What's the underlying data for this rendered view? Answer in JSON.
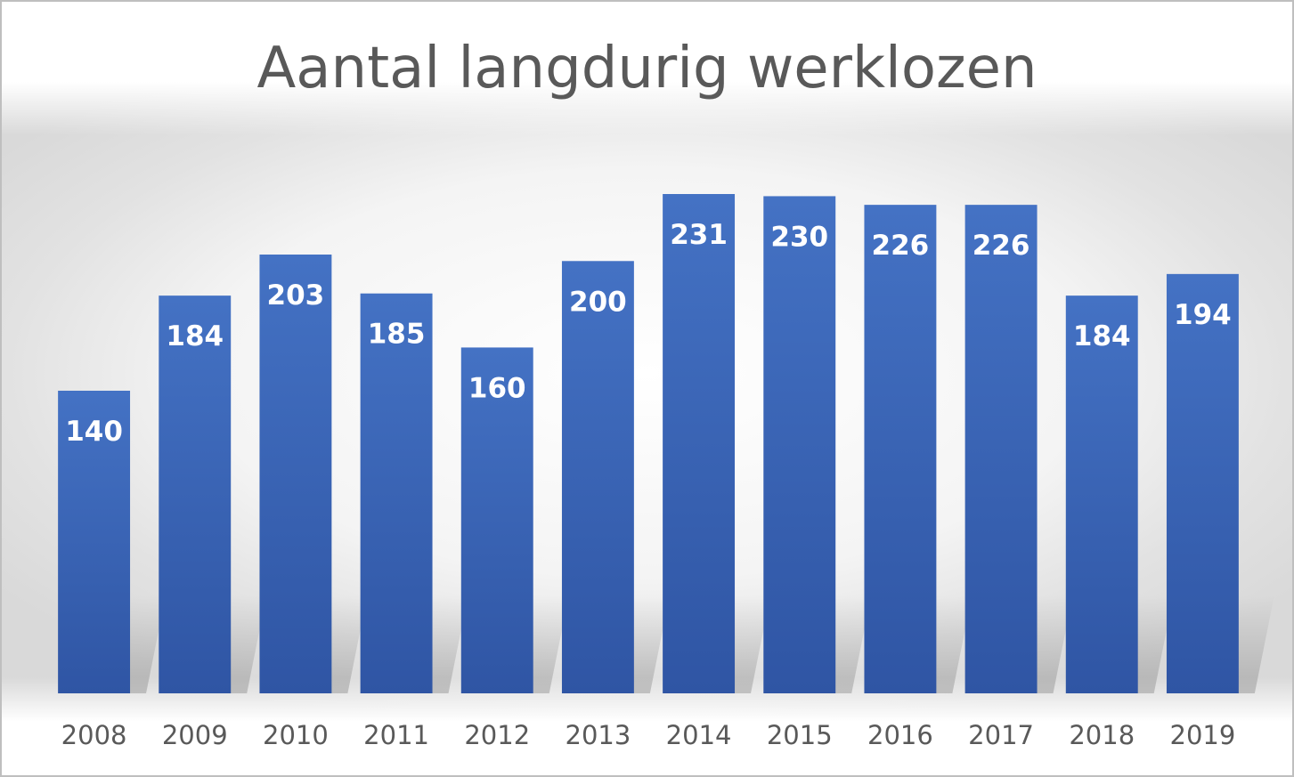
{
  "chart_data": {
    "type": "bar",
    "title": "Aantal langdurig werklozen",
    "categories": [
      "2008",
      "2009",
      "2010",
      "2011",
      "2012",
      "2013",
      "2014",
      "2015",
      "2016",
      "2017",
      "2018",
      "2019"
    ],
    "values": [
      140,
      184,
      203,
      185,
      160,
      200,
      231,
      230,
      226,
      226,
      184,
      194
    ],
    "xlabel": "",
    "ylabel": "",
    "ylim": [
      0,
      231
    ],
    "grid": false,
    "legend": "none",
    "data_labels": "inside-top",
    "colors": {
      "bar_top": "#4472c4",
      "bar_bottom": "#2f55a4",
      "label": "#ffffff",
      "tick": "#595959",
      "title": "#595959"
    }
  }
}
